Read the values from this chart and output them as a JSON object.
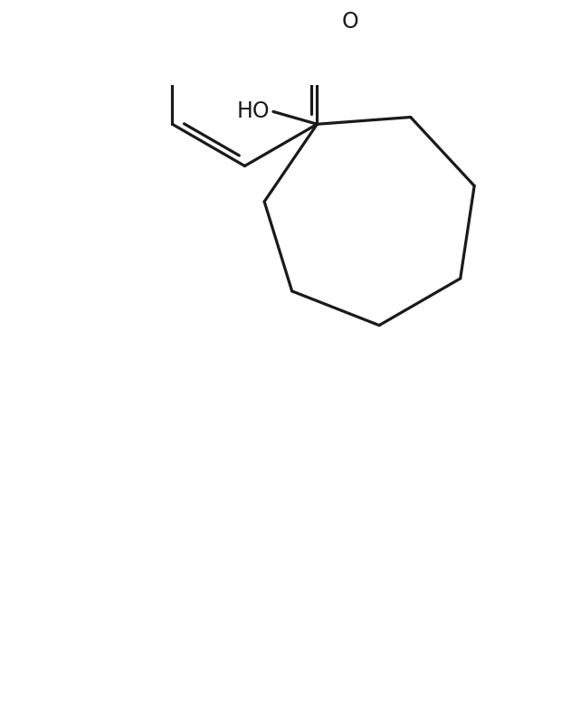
{
  "background_color": "#ffffff",
  "line_color": "#1a1a1a",
  "line_width": 2.3,
  "ho_label": "HO",
  "o_label": "O",
  "ho_fontsize": 17,
  "o_fontsize": 17,
  "figsize": [
    6.2,
    7.86
  ],
  "dpi": 100
}
